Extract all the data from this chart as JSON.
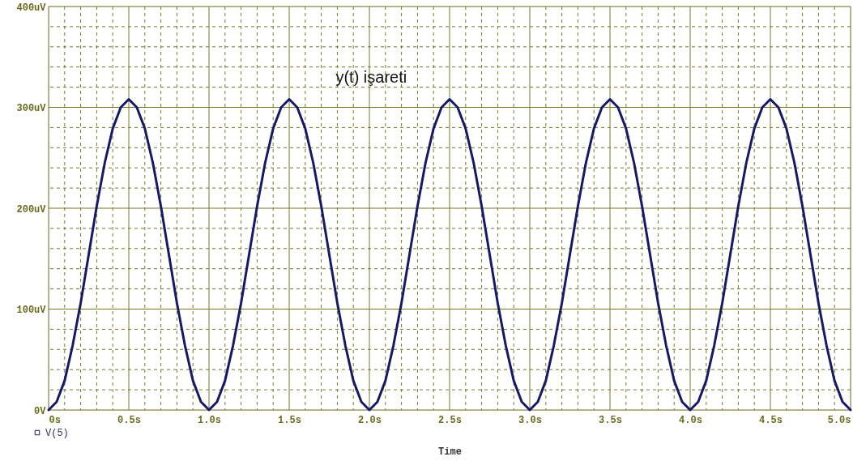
{
  "chart_data": {
    "type": "line",
    "annotations": [
      "y(t) işareti"
    ],
    "xlabel": "Time",
    "x": [
      0,
      0.05,
      0.1,
      0.15,
      0.2,
      0.25,
      0.3,
      0.35,
      0.4,
      0.45,
      0.5,
      0.55,
      0.6,
      0.65,
      0.7,
      0.75,
      0.8,
      0.85,
      0.9,
      0.95,
      1,
      1.05,
      1.1,
      1.15,
      1.2,
      1.25,
      1.3,
      1.35,
      1.4,
      1.45,
      1.5,
      1.55,
      1.6,
      1.65,
      1.7,
      1.75,
      1.8,
      1.85,
      1.9,
      1.95,
      2,
      2.05,
      2.1,
      2.15,
      2.2,
      2.25,
      2.3,
      2.35,
      2.4,
      2.45,
      2.5,
      2.55,
      2.6,
      2.65,
      2.7,
      2.75,
      2.8,
      2.85,
      2.9,
      2.95,
      3,
      3.05,
      3.1,
      3.15,
      3.2,
      3.25,
      3.3,
      3.35,
      3.4,
      3.45,
      3.5,
      3.55,
      3.6,
      3.65,
      3.7,
      3.75,
      3.8,
      3.85,
      3.9,
      3.95,
      4,
      4.05,
      4.1,
      4.15,
      4.2,
      4.25,
      4.3,
      4.35,
      4.4,
      4.45,
      4.5,
      4.55,
      4.6,
      4.65,
      4.7,
      4.75,
      4.8,
      4.85,
      4.9,
      4.95,
      5
    ],
    "series": [
      {
        "name": "V(5)",
        "color": "#161a66",
        "values": [
          0,
          8,
          29,
          64,
          106,
          154,
          202,
          245,
          279,
          300,
          308,
          300,
          279,
          245,
          202,
          154,
          106,
          64,
          29,
          8,
          0,
          8,
          29,
          64,
          106,
          154,
          202,
          245,
          279,
          300,
          308,
          300,
          279,
          245,
          202,
          154,
          106,
          64,
          29,
          8,
          0,
          8,
          29,
          64,
          106,
          154,
          202,
          245,
          279,
          300,
          308,
          300,
          279,
          245,
          202,
          154,
          106,
          64,
          29,
          8,
          0,
          8,
          29,
          64,
          106,
          154,
          202,
          245,
          279,
          300,
          308,
          300,
          279,
          245,
          202,
          154,
          106,
          64,
          29,
          8,
          0,
          8,
          29,
          64,
          106,
          154,
          202,
          245,
          279,
          300,
          308,
          300,
          279,
          245,
          202,
          154,
          106,
          64,
          29,
          8,
          0
        ]
      }
    ],
    "xlim": [
      0,
      5
    ],
    "xticks": [
      {
        "value": 0,
        "label": "0s"
      },
      {
        "value": 0.1,
        "label": null
      },
      {
        "value": 0.2,
        "label": null
      },
      {
        "value": 0.3,
        "label": null
      },
      {
        "value": 0.4,
        "label": null
      },
      {
        "value": 0.5,
        "label": "0.5s"
      },
      {
        "value": 0.6,
        "label": null
      },
      {
        "value": 0.7,
        "label": null
      },
      {
        "value": 0.8,
        "label": null
      },
      {
        "value": 0.9,
        "label": null
      },
      {
        "value": 1,
        "label": "1.0s"
      },
      {
        "value": 1.1,
        "label": null
      },
      {
        "value": 1.2,
        "label": null
      },
      {
        "value": 1.3,
        "label": null
      },
      {
        "value": 1.4,
        "label": null
      },
      {
        "value": 1.5,
        "label": "1.5s"
      },
      {
        "value": 1.6,
        "label": null
      },
      {
        "value": 1.7,
        "label": null
      },
      {
        "value": 1.8,
        "label": null
      },
      {
        "value": 1.9,
        "label": null
      },
      {
        "value": 2,
        "label": "2.0s"
      },
      {
        "value": 2.1,
        "label": null
      },
      {
        "value": 2.2,
        "label": null
      },
      {
        "value": 2.3,
        "label": null
      },
      {
        "value": 2.4,
        "label": null
      },
      {
        "value": 2.5,
        "label": "2.5s"
      },
      {
        "value": 2.6,
        "label": null
      },
      {
        "value": 2.7,
        "label": null
      },
      {
        "value": 2.8,
        "label": null
      },
      {
        "value": 2.9,
        "label": null
      },
      {
        "value": 3,
        "label": "3.0s"
      },
      {
        "value": 3.1,
        "label": null
      },
      {
        "value": 3.2,
        "label": null
      },
      {
        "value": 3.3,
        "label": null
      },
      {
        "value": 3.4,
        "label": null
      },
      {
        "value": 3.5,
        "label": "3.5s"
      },
      {
        "value": 3.6,
        "label": null
      },
      {
        "value": 3.7,
        "label": null
      },
      {
        "value": 3.8,
        "label": null
      },
      {
        "value": 3.9,
        "label": null
      },
      {
        "value": 4,
        "label": "4.0s"
      },
      {
        "value": 4.1,
        "label": null
      },
      {
        "value": 4.2,
        "label": null
      },
      {
        "value": 4.3,
        "label": null
      },
      {
        "value": 4.4,
        "label": null
      },
      {
        "value": 4.5,
        "label": "4.5s"
      },
      {
        "value": 4.6,
        "label": null
      },
      {
        "value": 4.7,
        "label": null
      },
      {
        "value": 4.8,
        "label": null
      },
      {
        "value": 4.9,
        "label": null
      },
      {
        "value": 5,
        "label": "5.0s"
      }
    ],
    "ylim": [
      0,
      400
    ],
    "yticks": [
      {
        "value": 0,
        "label": "0V"
      },
      {
        "value": 20,
        "label": null
      },
      {
        "value": 40,
        "label": null
      },
      {
        "value": 60,
        "label": null
      },
      {
        "value": 80,
        "label": null
      },
      {
        "value": 100,
        "label": "100uV"
      },
      {
        "value": 120,
        "label": null
      },
      {
        "value": 140,
        "label": null
      },
      {
        "value": 160,
        "label": null
      },
      {
        "value": 180,
        "label": null
      },
      {
        "value": 200,
        "label": "200uV"
      },
      {
        "value": 220,
        "label": null
      },
      {
        "value": 240,
        "label": null
      },
      {
        "value": 260,
        "label": null
      },
      {
        "value": 280,
        "label": null
      },
      {
        "value": 300,
        "label": "300uV"
      },
      {
        "value": 320,
        "label": null
      },
      {
        "value": 340,
        "label": null
      },
      {
        "value": 360,
        "label": null
      },
      {
        "value": 380,
        "label": null
      },
      {
        "value": 400,
        "label": "400uV"
      }
    ],
    "grid": true,
    "legend": "bottom left",
    "line_style": "solid",
    "marker": "none"
  }
}
